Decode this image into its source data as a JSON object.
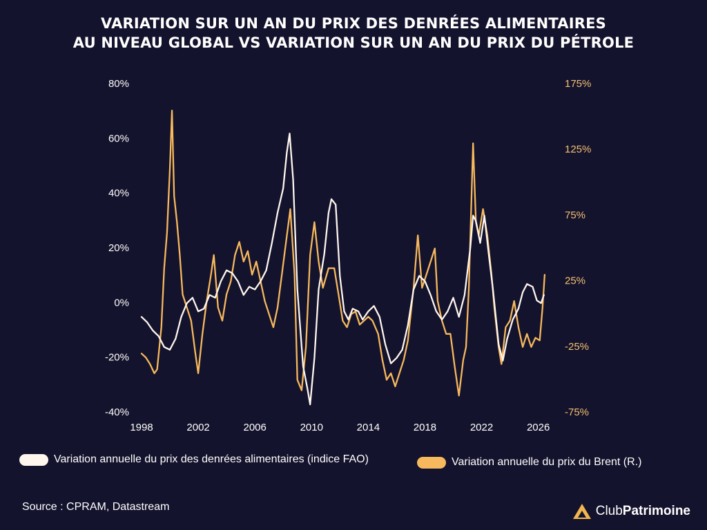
{
  "colors": {
    "background": "#14132d",
    "food": "#fff6ee",
    "oil": "#f7b95d",
    "right_axis_text": "#f2c071",
    "logo": "#f2b54f"
  },
  "chart_data": {
    "type": "line",
    "title_lines": [
      "VARIATION SUR UN AN DU PRIX DES DENRÉES ALIMENTAIRES",
      "AU NIVEAU GLOBAL VS VARIATION SUR UN AN DU PRIX DU PÉTROLE"
    ],
    "x_range": [
      1998,
      2026.7
    ],
    "x_ticks": [
      1998,
      2002,
      2006,
      2010,
      2014,
      2018,
      2022,
      2026
    ],
    "y_left": {
      "range": [
        -40,
        80
      ],
      "ticks": [
        -40,
        -20,
        0,
        20,
        40,
        60,
        80
      ],
      "tick_labels": [
        "-40%",
        "-20%",
        "0%",
        "20%",
        "40%",
        "60%",
        "80%"
      ]
    },
    "y_right": {
      "range": [
        -75,
        175
      ],
      "ticks": [
        -75,
        -25,
        25,
        75,
        125,
        175
      ],
      "tick_labels": [
        "-75%",
        "-25%",
        "25%",
        "75%",
        "125%",
        "175%"
      ]
    },
    "series": [
      {
        "name": "Variation annuelle du prix des denrées alimentaires (indice FAO)",
        "axis": "left",
        "points": [
          [
            1998.0,
            -5
          ],
          [
            1998.4,
            -7
          ],
          [
            1998.8,
            -10
          ],
          [
            1999.2,
            -12
          ],
          [
            1999.6,
            -16
          ],
          [
            2000.0,
            -17
          ],
          [
            2000.4,
            -13
          ],
          [
            2000.8,
            -5
          ],
          [
            2001.2,
            0
          ],
          [
            2001.6,
            2
          ],
          [
            2002.0,
            -3
          ],
          [
            2002.4,
            -2
          ],
          [
            2002.8,
            3
          ],
          [
            2003.2,
            2
          ],
          [
            2003.6,
            8
          ],
          [
            2004.0,
            12
          ],
          [
            2004.4,
            11
          ],
          [
            2004.8,
            8
          ],
          [
            2005.2,
            3
          ],
          [
            2005.6,
            6
          ],
          [
            2006.0,
            5
          ],
          [
            2006.4,
            8
          ],
          [
            2006.8,
            12
          ],
          [
            2007.2,
            22
          ],
          [
            2007.6,
            33
          ],
          [
            2008.0,
            42
          ],
          [
            2008.25,
            55
          ],
          [
            2008.45,
            62
          ],
          [
            2008.7,
            45
          ],
          [
            2009.0,
            5
          ],
          [
            2009.4,
            -23
          ],
          [
            2009.7,
            -31
          ],
          [
            2009.9,
            -37
          ],
          [
            2010.2,
            -20
          ],
          [
            2010.5,
            5
          ],
          [
            2010.9,
            18
          ],
          [
            2011.2,
            33
          ],
          [
            2011.4,
            38
          ],
          [
            2011.7,
            36
          ],
          [
            2012.0,
            10
          ],
          [
            2012.3,
            -3
          ],
          [
            2012.6,
            -6
          ],
          [
            2012.9,
            -2
          ],
          [
            2013.3,
            -3
          ],
          [
            2013.6,
            -6
          ],
          [
            2014.0,
            -3
          ],
          [
            2014.4,
            -1
          ],
          [
            2014.8,
            -5
          ],
          [
            2015.2,
            -15
          ],
          [
            2015.6,
            -22
          ],
          [
            2016.0,
            -20
          ],
          [
            2016.4,
            -17
          ],
          [
            2016.8,
            -8
          ],
          [
            2017.2,
            5
          ],
          [
            2017.6,
            10
          ],
          [
            2018.0,
            8
          ],
          [
            2018.4,
            3
          ],
          [
            2018.8,
            -3
          ],
          [
            2019.2,
            -6
          ],
          [
            2019.6,
            -3
          ],
          [
            2020.0,
            2
          ],
          [
            2020.4,
            -5
          ],
          [
            2020.8,
            3
          ],
          [
            2021.2,
            20
          ],
          [
            2021.4,
            32
          ],
          [
            2021.6,
            30
          ],
          [
            2021.9,
            22
          ],
          [
            2022.2,
            32
          ],
          [
            2022.5,
            18
          ],
          [
            2022.8,
            5
          ],
          [
            2023.2,
            -15
          ],
          [
            2023.5,
            -21
          ],
          [
            2023.8,
            -13
          ],
          [
            2024.2,
            -6
          ],
          [
            2024.6,
            -2
          ],
          [
            2024.9,
            4
          ],
          [
            2025.2,
            7
          ],
          [
            2025.6,
            6
          ],
          [
            2025.9,
            1
          ],
          [
            2026.2,
            0
          ],
          [
            2026.4,
            3
          ]
        ]
      },
      {
        "name": "Variation annuelle du prix du Brent (R.)",
        "axis": "right",
        "points": [
          [
            1998.0,
            -30
          ],
          [
            1998.3,
            -33
          ],
          [
            1998.6,
            -38
          ],
          [
            1998.9,
            -45
          ],
          [
            1999.1,
            -42
          ],
          [
            1999.4,
            -10
          ],
          [
            1999.6,
            35
          ],
          [
            1999.8,
            62
          ],
          [
            2000.0,
            110
          ],
          [
            2000.15,
            155
          ],
          [
            2000.3,
            90
          ],
          [
            2000.5,
            70
          ],
          [
            2000.7,
            45
          ],
          [
            2000.9,
            15
          ],
          [
            2001.2,
            5
          ],
          [
            2001.5,
            -5
          ],
          [
            2001.8,
            -30
          ],
          [
            2002.0,
            -45
          ],
          [
            2002.3,
            -15
          ],
          [
            2002.6,
            10
          ],
          [
            2002.9,
            30
          ],
          [
            2003.1,
            45
          ],
          [
            2003.4,
            5
          ],
          [
            2003.7,
            -5
          ],
          [
            2004.0,
            15
          ],
          [
            2004.3,
            25
          ],
          [
            2004.6,
            45
          ],
          [
            2004.9,
            55
          ],
          [
            2005.2,
            40
          ],
          [
            2005.5,
            48
          ],
          [
            2005.8,
            30
          ],
          [
            2006.1,
            40
          ],
          [
            2006.4,
            25
          ],
          [
            2006.7,
            10
          ],
          [
            2007.0,
            0
          ],
          [
            2007.3,
            -10
          ],
          [
            2007.6,
            5
          ],
          [
            2007.9,
            30
          ],
          [
            2008.2,
            55
          ],
          [
            2008.5,
            80
          ],
          [
            2008.8,
            30
          ],
          [
            2009.0,
            -50
          ],
          [
            2009.3,
            -58
          ],
          [
            2009.6,
            -25
          ],
          [
            2009.9,
            45
          ],
          [
            2010.2,
            70
          ],
          [
            2010.5,
            40
          ],
          [
            2010.8,
            20
          ],
          [
            2011.2,
            35
          ],
          [
            2011.6,
            35
          ],
          [
            2011.9,
            15
          ],
          [
            2012.2,
            -5
          ],
          [
            2012.5,
            -10
          ],
          [
            2012.8,
            0
          ],
          [
            2013.1,
            2
          ],
          [
            2013.4,
            -8
          ],
          [
            2013.7,
            -5
          ],
          [
            2014.0,
            -2
          ],
          [
            2014.3,
            -5
          ],
          [
            2014.7,
            -15
          ],
          [
            2015.0,
            -35
          ],
          [
            2015.3,
            -50
          ],
          [
            2015.6,
            -45
          ],
          [
            2015.9,
            -55
          ],
          [
            2016.2,
            -45
          ],
          [
            2016.5,
            -35
          ],
          [
            2016.8,
            -20
          ],
          [
            2017.2,
            20
          ],
          [
            2017.5,
            60
          ],
          [
            2017.8,
            20
          ],
          [
            2018.1,
            30
          ],
          [
            2018.4,
            40
          ],
          [
            2018.7,
            50
          ],
          [
            2018.9,
            10
          ],
          [
            2019.2,
            -5
          ],
          [
            2019.5,
            -15
          ],
          [
            2019.8,
            -15
          ],
          [
            2020.1,
            -40
          ],
          [
            2020.4,
            -62
          ],
          [
            2020.7,
            -35
          ],
          [
            2020.9,
            -25
          ],
          [
            2021.1,
            20
          ],
          [
            2021.4,
            130
          ],
          [
            2021.6,
            70
          ],
          [
            2021.8,
            60
          ],
          [
            2022.1,
            80
          ],
          [
            2022.4,
            60
          ],
          [
            2022.7,
            30
          ],
          [
            2022.9,
            5
          ],
          [
            2023.2,
            -25
          ],
          [
            2023.4,
            -38
          ],
          [
            2023.7,
            -10
          ],
          [
            2024.0,
            -5
          ],
          [
            2024.3,
            10
          ],
          [
            2024.6,
            -10
          ],
          [
            2024.9,
            -25
          ],
          [
            2025.2,
            -15
          ],
          [
            2025.5,
            -25
          ],
          [
            2025.8,
            -18
          ],
          [
            2026.1,
            -20
          ],
          [
            2026.3,
            5
          ],
          [
            2026.45,
            30
          ]
        ]
      }
    ]
  },
  "legend": {
    "food": "Variation annuelle du prix des denrées alimentaires (indice FAO)",
    "oil": "Variation annuelle du prix du Brent (R.)"
  },
  "source": "Source : CPRAM, Datastream",
  "brand": {
    "part1": "Club",
    "part2": "Patrimoine"
  }
}
